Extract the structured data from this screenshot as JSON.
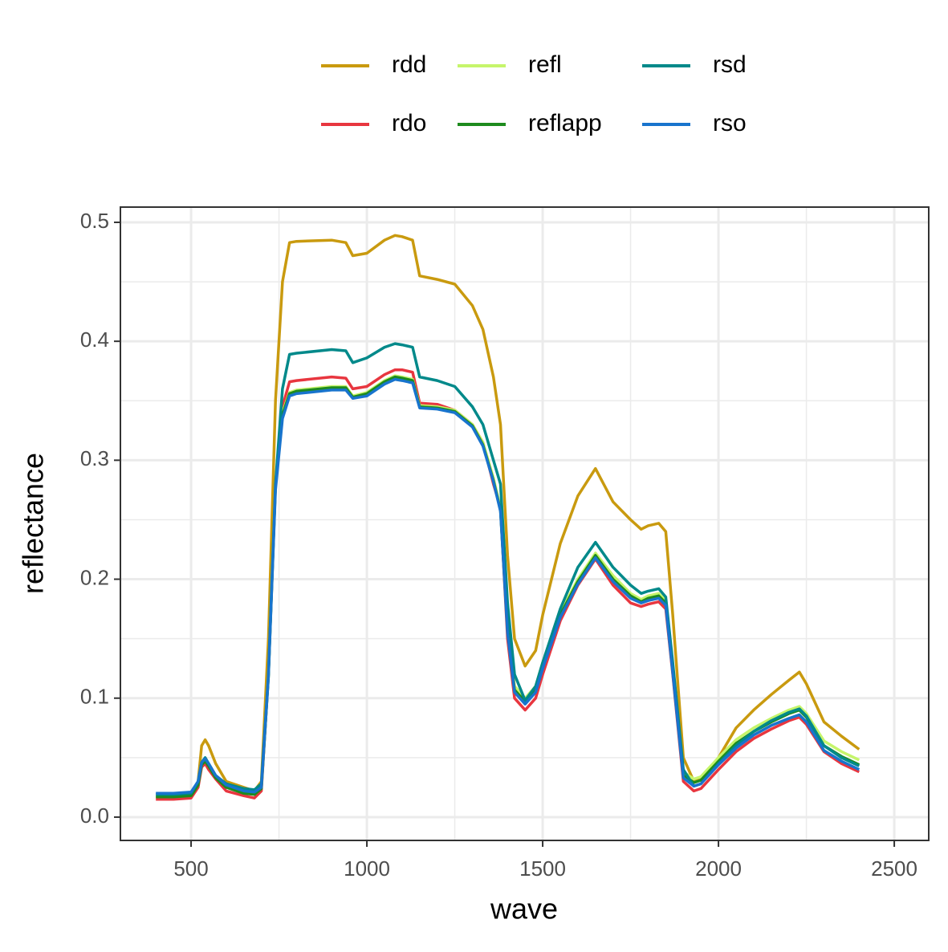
{
  "chart_data": {
    "type": "line",
    "xlabel": "wave",
    "ylabel": "reflectance",
    "xlim": [
      299,
      2598
    ],
    "ylim": [
      -0.0196,
      0.5128
    ],
    "xticks": [
      500,
      1000,
      1500,
      2000,
      2500
    ],
    "yticks": [
      {
        "value": 0,
        "label": "0.0"
      },
      0.1,
      0.2,
      0.3,
      0.4,
      0.5
    ],
    "minor_xticks": [
      750,
      1250,
      1750,
      2250
    ],
    "minor_yticks": [
      0.05,
      0.15,
      0.25,
      0.35,
      0.45
    ],
    "grid": true,
    "legend": "top",
    "x": [
      400,
      450,
      500,
      520,
      530,
      540,
      550,
      570,
      600,
      650,
      680,
      700,
      720,
      740,
      760,
      780,
      800,
      900,
      940,
      960,
      1000,
      1050,
      1080,
      1100,
      1130,
      1150,
      1200,
      1250,
      1300,
      1330,
      1360,
      1380,
      1400,
      1420,
      1450,
      1480,
      1500,
      1550,
      1600,
      1650,
      1700,
      1750,
      1780,
      1800,
      1830,
      1850,
      1870,
      1900,
      1930,
      1950,
      2000,
      2050,
      2100,
      2150,
      2200,
      2230,
      2250,
      2300,
      2350,
      2400
    ],
    "series": [
      {
        "name": "rdd",
        "color": "#c99a0f",
        "values": [
          0.017,
          0.017,
          0.018,
          0.03,
          0.06,
          0.065,
          0.06,
          0.045,
          0.03,
          0.025,
          0.022,
          0.03,
          0.15,
          0.35,
          0.45,
          0.483,
          0.484,
          0.485,
          0.483,
          0.472,
          0.474,
          0.485,
          0.489,
          0.488,
          0.485,
          0.455,
          0.452,
          0.448,
          0.43,
          0.41,
          0.37,
          0.33,
          0.22,
          0.15,
          0.127,
          0.14,
          0.17,
          0.23,
          0.27,
          0.293,
          0.265,
          0.25,
          0.242,
          0.245,
          0.247,
          0.24,
          0.17,
          0.05,
          0.03,
          0.032,
          0.05,
          0.075,
          0.09,
          0.103,
          0.115,
          0.122,
          0.112,
          0.08,
          0.068,
          0.057
        ]
      },
      {
        "name": "rdo",
        "color": "#e8363f",
        "values": [
          0.015,
          0.015,
          0.016,
          0.025,
          0.042,
          0.045,
          0.04,
          0.032,
          0.022,
          0.018,
          0.016,
          0.022,
          0.12,
          0.28,
          0.345,
          0.366,
          0.367,
          0.37,
          0.369,
          0.36,
          0.362,
          0.372,
          0.376,
          0.376,
          0.374,
          0.348,
          0.347,
          0.342,
          0.33,
          0.315,
          0.28,
          0.26,
          0.15,
          0.1,
          0.09,
          0.1,
          0.12,
          0.165,
          0.195,
          0.217,
          0.195,
          0.18,
          0.177,
          0.179,
          0.181,
          0.175,
          0.12,
          0.03,
          0.022,
          0.024,
          0.04,
          0.055,
          0.066,
          0.074,
          0.081,
          0.084,
          0.078,
          0.055,
          0.045,
          0.038
        ]
      },
      {
        "name": "refl",
        "color": "#c6f56b",
        "values": [
          0.018,
          0.018,
          0.019,
          0.028,
          0.045,
          0.048,
          0.044,
          0.034,
          0.026,
          0.021,
          0.02,
          0.025,
          0.12,
          0.28,
          0.34,
          0.357,
          0.359,
          0.362,
          0.362,
          0.354,
          0.357,
          0.367,
          0.371,
          0.37,
          0.368,
          0.346,
          0.345,
          0.342,
          0.33,
          0.315,
          0.285,
          0.26,
          0.16,
          0.11,
          0.1,
          0.11,
          0.13,
          0.172,
          0.2,
          0.222,
          0.203,
          0.188,
          0.183,
          0.186,
          0.188,
          0.182,
          0.125,
          0.038,
          0.032,
          0.034,
          0.05,
          0.065,
          0.075,
          0.083,
          0.09,
          0.093,
          0.087,
          0.064,
          0.055,
          0.048
        ]
      },
      {
        "name": "reflapp",
        "color": "#1e8b1e",
        "values": [
          0.017,
          0.017,
          0.018,
          0.027,
          0.044,
          0.047,
          0.043,
          0.033,
          0.025,
          0.02,
          0.019,
          0.024,
          0.118,
          0.278,
          0.338,
          0.356,
          0.358,
          0.361,
          0.361,
          0.353,
          0.356,
          0.366,
          0.37,
          0.369,
          0.367,
          0.345,
          0.344,
          0.341,
          0.329,
          0.313,
          0.283,
          0.258,
          0.157,
          0.107,
          0.097,
          0.107,
          0.127,
          0.17,
          0.198,
          0.22,
          0.2,
          0.186,
          0.181,
          0.184,
          0.186,
          0.18,
          0.123,
          0.035,
          0.029,
          0.031,
          0.047,
          0.062,
          0.072,
          0.08,
          0.087,
          0.09,
          0.084,
          0.06,
          0.051,
          0.044
        ]
      },
      {
        "name": "rsd",
        "color": "#00898a",
        "values": [
          0.019,
          0.019,
          0.02,
          0.03,
          0.046,
          0.05,
          0.045,
          0.035,
          0.028,
          0.024,
          0.023,
          0.028,
          0.12,
          0.28,
          0.36,
          0.389,
          0.39,
          0.393,
          0.392,
          0.382,
          0.386,
          0.395,
          0.398,
          0.397,
          0.395,
          0.37,
          0.367,
          0.362,
          0.345,
          0.33,
          0.3,
          0.28,
          0.18,
          0.12,
          0.098,
          0.11,
          0.13,
          0.175,
          0.21,
          0.231,
          0.21,
          0.195,
          0.188,
          0.19,
          0.192,
          0.185,
          0.13,
          0.04,
          0.026,
          0.028,
          0.045,
          0.06,
          0.072,
          0.081,
          0.088,
          0.091,
          0.085,
          0.06,
          0.05,
          0.043
        ]
      },
      {
        "name": "rso",
        "color": "#1874cd",
        "values": [
          0.02,
          0.02,
          0.021,
          0.03,
          0.046,
          0.049,
          0.045,
          0.035,
          0.027,
          0.022,
          0.021,
          0.025,
          0.118,
          0.275,
          0.335,
          0.354,
          0.356,
          0.359,
          0.359,
          0.352,
          0.354,
          0.364,
          0.368,
          0.367,
          0.365,
          0.344,
          0.343,
          0.34,
          0.328,
          0.312,
          0.282,
          0.257,
          0.155,
          0.105,
          0.095,
          0.105,
          0.125,
          0.168,
          0.196,
          0.218,
          0.198,
          0.184,
          0.18,
          0.182,
          0.184,
          0.178,
          0.121,
          0.033,
          0.026,
          0.028,
          0.044,
          0.058,
          0.069,
          0.077,
          0.083,
          0.086,
          0.08,
          0.056,
          0.047,
          0.04
        ]
      }
    ]
  }
}
